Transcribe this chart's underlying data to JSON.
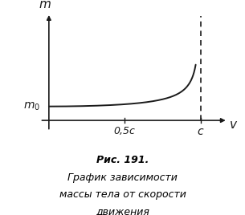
{
  "title": "",
  "xlabel": "v",
  "ylabel": "m",
  "m0_label": "$m_0$",
  "x_tick_05c": "0,5c",
  "x_tick_c": "c",
  "caption_bold": "Рис. 191.",
  "caption_italic": " График зависимости\nмассы тела от скорости\nдвижения",
  "curve_color": "#1a1a1a",
  "dashed_color": "#1a1a1a",
  "axis_color": "#1a1a1a",
  "background_color": "#ffffff",
  "fig_width": 3.05,
  "fig_height": 2.68,
  "dpi": 100
}
